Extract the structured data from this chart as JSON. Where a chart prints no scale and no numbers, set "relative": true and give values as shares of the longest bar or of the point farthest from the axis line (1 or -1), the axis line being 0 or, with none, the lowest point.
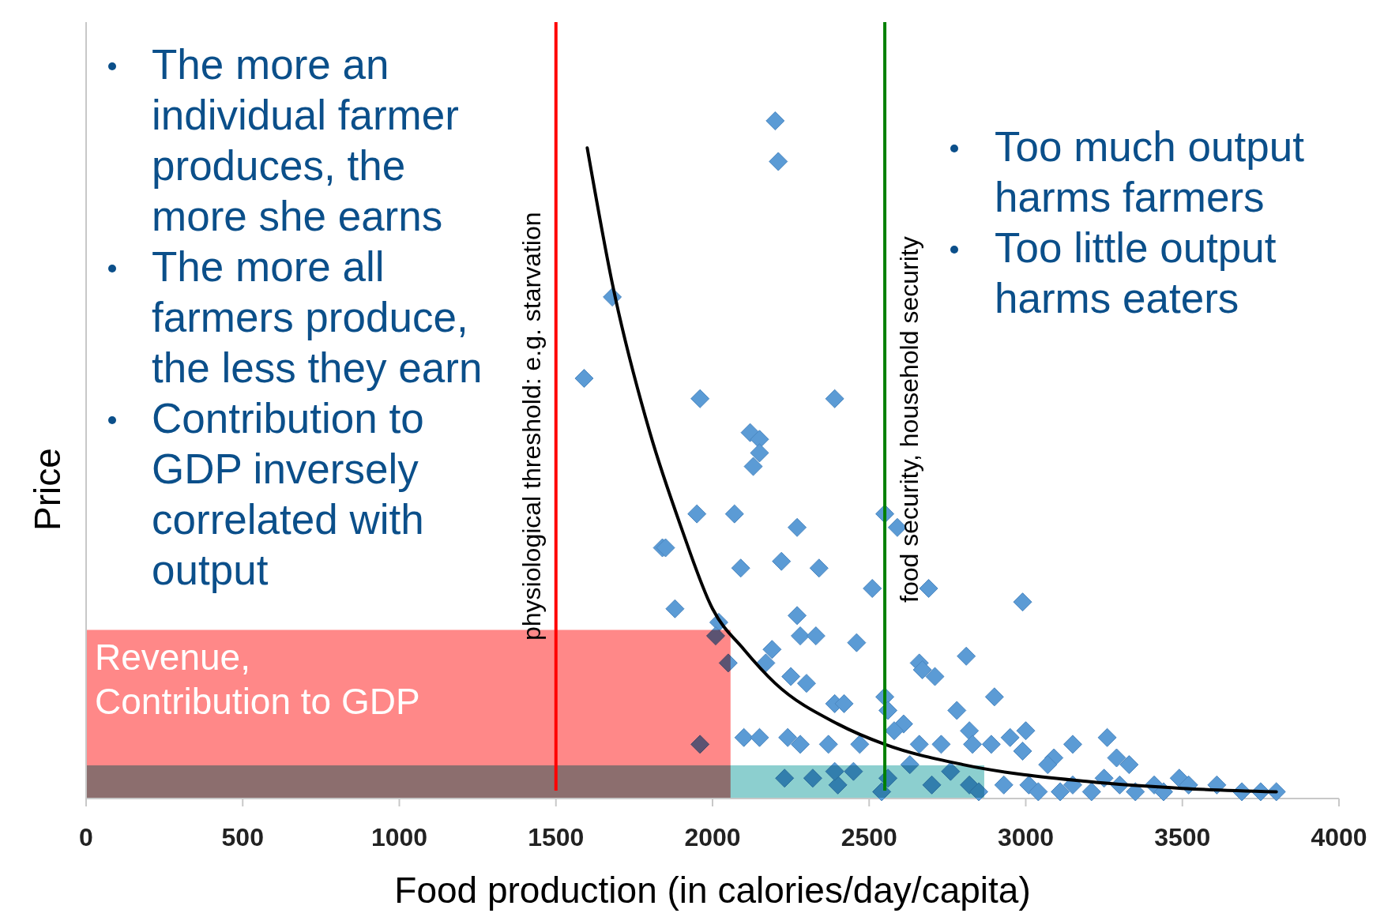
{
  "chart_data": {
    "type": "scatter",
    "xlabel": "Food production (in calories/day/capita)",
    "ylabel": "Price",
    "relative": true,
    "tick_labels": "x",
    "grid": false,
    "xlim": [
      0,
      4000
    ],
    "xticks": [
      0,
      500,
      1000,
      1500,
      2000,
      2500,
      3000,
      3500,
      4000
    ],
    "series": [
      {
        "marker": "diamond",
        "color": "#5b9bd5",
        "x": [
          2200,
          2210,
          1680,
          1590,
          1960,
          2390,
          2120,
          2150,
          2150,
          2130,
          1950,
          2070,
          2550,
          2590,
          2270,
          1840,
          1850,
          2090,
          2220,
          2340,
          2510,
          2690,
          2990,
          1880,
          2270,
          2020,
          2280,
          2330,
          2460,
          2010,
          2050,
          2190,
          2170,
          2660,
          2670,
          2710,
          2810,
          2250,
          2300,
          2900,
          2780,
          2390,
          2420,
          2550,
          2560,
          2610,
          2580,
          2820,
          2950,
          3000,
          3260,
          2100,
          2150,
          2240,
          2280,
          2370,
          2660,
          2730,
          2830,
          2890,
          3150,
          3090,
          3290,
          3330,
          2990,
          3070,
          2470,
          1960,
          2230,
          2320,
          2400,
          2450,
          2560,
          2700,
          2820,
          2930,
          3010,
          3110,
          3210,
          3300,
          3410,
          3490,
          3520,
          3610,
          3690,
          3750,
          3800,
          3440,
          3350,
          3040,
          2390,
          2630,
          2760,
          2540,
          2850,
          3150,
          3250
        ],
        "values": [
          1.0,
          0.94,
          0.74,
          0.62,
          0.59,
          0.59,
          0.54,
          0.53,
          0.51,
          0.49,
          0.42,
          0.42,
          0.42,
          0.4,
          0.4,
          0.37,
          0.37,
          0.34,
          0.35,
          0.34,
          0.31,
          0.31,
          0.29,
          0.28,
          0.27,
          0.26,
          0.24,
          0.24,
          0.23,
          0.24,
          0.2,
          0.22,
          0.2,
          0.2,
          0.19,
          0.18,
          0.21,
          0.18,
          0.17,
          0.15,
          0.13,
          0.14,
          0.14,
          0.15,
          0.13,
          0.11,
          0.1,
          0.1,
          0.09,
          0.1,
          0.09,
          0.09,
          0.09,
          0.09,
          0.08,
          0.08,
          0.08,
          0.08,
          0.08,
          0.08,
          0.08,
          0.06,
          0.06,
          0.05,
          0.07,
          0.05,
          0.08,
          0.08,
          0.03,
          0.03,
          0.02,
          0.04,
          0.03,
          0.02,
          0.02,
          0.02,
          0.02,
          0.01,
          0.01,
          0.02,
          0.02,
          0.03,
          0.02,
          0.02,
          0.01,
          0.01,
          0.01,
          0.01,
          0.01,
          0.01,
          0.04,
          0.05,
          0.04,
          0.01,
          0.01,
          0.02,
          0.03
        ]
      },
      {
        "type": "area",
        "color": "#ff7b7b",
        "x": [
          0,
          2060
        ],
        "values": [
          0.25,
          0.25
        ]
      },
      {
        "type": "area",
        "color": "#7fcaca",
        "x": [
          0,
          2870
        ],
        "values": [
          0.05,
          0.05
        ]
      },
      {
        "type": "line",
        "color": "#000000",
        "x": [
          1600,
          1680,
          1800,
          1900,
          2000,
          2100,
          2200,
          2400,
          2550,
          2800,
          3200,
          3500,
          3800
        ],
        "values": [
          0.96,
          0.76,
          0.54,
          0.4,
          0.28,
          0.22,
          0.17,
          0.11,
          0.08,
          0.05,
          0.025,
          0.015,
          0.01
        ]
      }
    ],
    "ref_lines": [
      {
        "axis": "x",
        "value": 1500,
        "label": "physiological threshold: e.g. starvation",
        "color": "#ff0000"
      },
      {
        "axis": "x",
        "value": 2550,
        "label": "food security, household security",
        "color": "#008000"
      }
    ],
    "annotations": [
      "The more an individual farmer produces, the more she earns",
      "The more all farmers produce, the less they earn",
      "Contribution to GDP inversely correlated with output",
      "Too much output harms farmers",
      "Too little output harms eaters",
      "Revenue, Contribution to GDP"
    ]
  }
}
